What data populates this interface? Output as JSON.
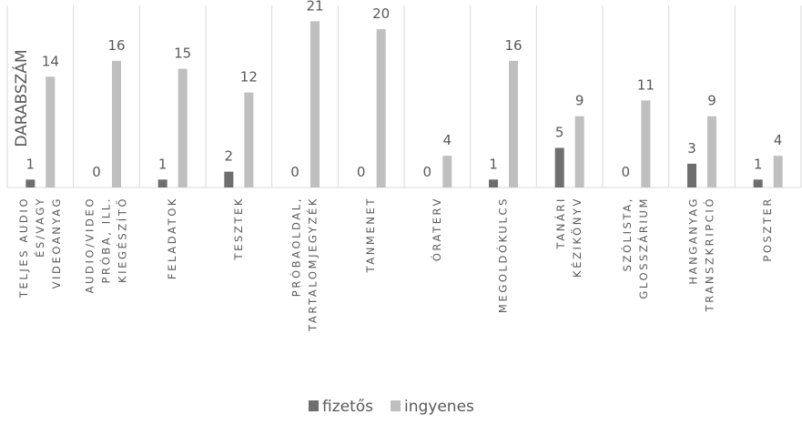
{
  "chart_data": {
    "type": "bar",
    "ylabel": "DARABSZÁM",
    "ylim": [
      0,
      23
    ],
    "grid": false,
    "legend_position": "bottom",
    "categories": [
      [
        "TELJES AUDIO",
        "ÉS/VAGY",
        "VIDEOANYAG"
      ],
      [
        "AUDIO/VIDEO",
        "PRÓBA, ILL.",
        "KIEGÉSZÍTŐ"
      ],
      [
        "FELADATOK"
      ],
      [
        "TESZTEK"
      ],
      [
        "PRÓBAOLDAL,",
        "TARTALOMJEGYZÉK"
      ],
      [
        "TANMENET"
      ],
      [
        "ÓRATERV"
      ],
      [
        "MEGOLDÓKULCS"
      ],
      [
        "TANÁRI",
        "KÉZIKÖNYV"
      ],
      [
        "SZÓLISTA,",
        "GLOSSZÁRIUM"
      ],
      [
        "HANGANYAG",
        "TRANSZKRIPCIÓ"
      ],
      [
        "POSZTER"
      ]
    ],
    "series": [
      {
        "name": "fizetős",
        "color": "#6e6e6e",
        "values": [
          1,
          0,
          1,
          2,
          0,
          0,
          0,
          1,
          5,
          0,
          3,
          1
        ]
      },
      {
        "name": "ingyenes",
        "color": "#bfbfbf",
        "values": [
          14,
          16,
          15,
          12,
          21,
          20,
          4,
          16,
          9,
          11,
          9,
          4
        ]
      }
    ]
  }
}
